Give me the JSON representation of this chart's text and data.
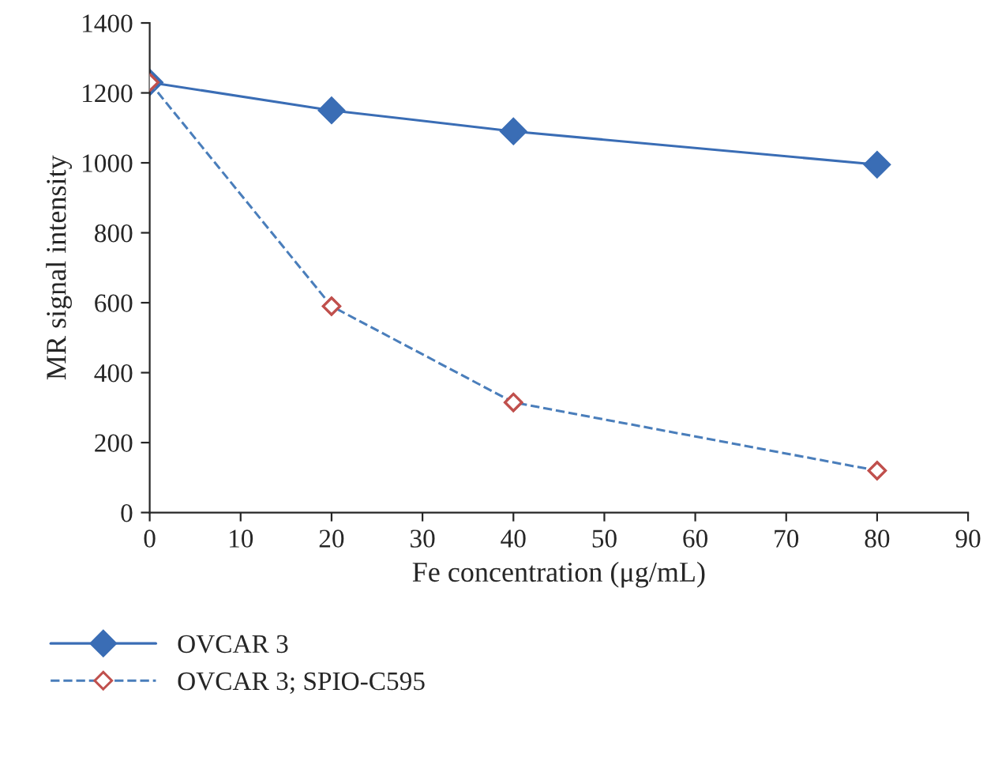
{
  "chart_data": {
    "type": "line",
    "xlabel": "Fe concentration (μg/mL)",
    "ylabel": "MR signal intensity",
    "x": [
      0,
      20,
      40,
      80
    ],
    "series": [
      {
        "name": "OVCAR 3",
        "color": "#3a6db5",
        "values": [
          1230,
          1150,
          1090,
          995
        ],
        "line_style": "solid"
      },
      {
        "name": "OVCAR 3; SPIO-C595",
        "color": "#4a7ebb",
        "colors": [
          "#c0504d",
          "#c0504d",
          "#c0504d",
          "#c0504d"
        ],
        "values": [
          1230,
          590,
          315,
          120
        ],
        "line_style": "dashed"
      }
    ],
    "xlim": [
      0,
      90
    ],
    "xticks": [
      0,
      10,
      20,
      30,
      40,
      50,
      60,
      70,
      80,
      90
    ],
    "ylim": [
      0,
      1400
    ],
    "yticks": [
      0,
      200,
      400,
      600,
      800,
      1000,
      1200,
      1400
    ],
    "marker": "diamond",
    "legend": "bottom",
    "grid": false
  }
}
